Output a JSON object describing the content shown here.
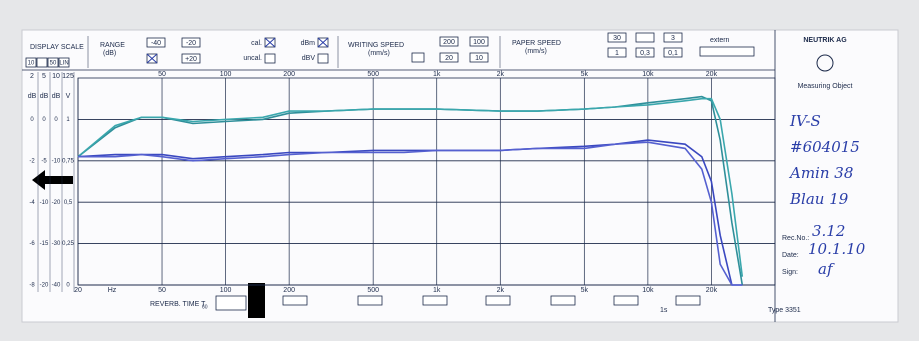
{
  "header": {
    "display_scale": "DISPLAY SCALE",
    "display_options": [
      "10",
      "50",
      "LIN"
    ],
    "range": "RANGE",
    "range_unit": "(dB)",
    "range_buttons": [
      "-40",
      "-20",
      "+20"
    ],
    "cal": "cal.",
    "dbm": "dBm",
    "uncal": "uncal.",
    "dbv": "dBV",
    "writing_speed": "WRITING SPEED",
    "writing_unit": "(mm/s)",
    "writing_buttons": [
      "200",
      "100",
      "20",
      "10"
    ],
    "paper_speed": "PAPER SPEED",
    "paper_unit": "(mm/s)",
    "paper_buttons": [
      "30",
      "3",
      "1",
      "0,3",
      "0,1"
    ],
    "extern": "extern"
  },
  "scale_columns": [
    {
      "range": "2",
      "unit": "dB",
      "labels": [
        "0",
        "-2",
        "-4",
        "-6",
        "-8"
      ]
    },
    {
      "range": "5",
      "unit": "dB",
      "labels": [
        "0",
        "-5",
        "-10",
        "-15",
        "-20"
      ]
    },
    {
      "range": "10",
      "unit": "dB"
    },
    {
      "range": "125",
      "unit": "V",
      "labels": [
        "1",
        "0,75",
        "0,5",
        "0,25",
        "0"
      ]
    }
  ],
  "chart_data": {
    "type": "line",
    "x_unit": "Hz",
    "log_x": true,
    "grid": true,
    "x": [
      20,
      30,
      40,
      50,
      70,
      100,
      150,
      200,
      300,
      500,
      700,
      1000,
      2000,
      3000,
      5000,
      7000,
      10000,
      15000,
      18000,
      20000,
      22000,
      25000,
      28000
    ],
    "series": [
      {
        "color": "#2f8f9a",
        "values": [
          -9,
          -2,
          0.5,
          0.5,
          -1,
          -0.5,
          0,
          1.5,
          2,
          2.5,
          2.5,
          2.5,
          2,
          2,
          2.5,
          3,
          4,
          5,
          5.5,
          4.5,
          -5,
          -25,
          -40
        ]
      },
      {
        "color": "#3aa7ad",
        "values": [
          -9,
          -1.5,
          0.5,
          0.5,
          -0.5,
          0,
          0.5,
          2,
          2,
          2.5,
          2.5,
          2.5,
          2,
          2,
          2.5,
          3,
          3.5,
          4.5,
          5,
          5,
          0,
          -18,
          -38
        ]
      },
      {
        "color": "#3a48c0",
        "values": [
          -9,
          -8.5,
          -8.5,
          -8.5,
          -9.5,
          -9,
          -8.5,
          -8,
          -8,
          -7.5,
          -7.5,
          -7.5,
          -7.5,
          -7,
          -6.5,
          -6,
          -5,
          -6,
          -9,
          -15,
          -28,
          -40,
          -40
        ]
      },
      {
        "color": "#5560d0",
        "values": [
          -9,
          -9,
          -8.5,
          -9,
          -10,
          -9.5,
          -9,
          -8.5,
          -8,
          -8,
          -8,
          -7.5,
          -7.5,
          -7,
          -7,
          -6,
          -5.5,
          -7,
          -12,
          -20,
          -35,
          -40,
          -40
        ]
      }
    ],
    "xlim": [
      20,
      40000
    ],
    "xticks": [
      20,
      50,
      100,
      200,
      500,
      {
        "value": 1000,
        "label": "1k"
      },
      {
        "value": 2000,
        "label": "2k"
      },
      {
        "value": 5000,
        "label": "5k"
      },
      {
        "value": 10000,
        "label": "10k"
      },
      {
        "value": 20000,
        "label": "20k"
      }
    ],
    "ylim": [
      -40,
      10
    ],
    "yticks": [
      0,
      -10,
      -20,
      -30,
      -40
    ]
  },
  "panel": {
    "company": "NEUTRIK AG",
    "measuring_object": "Measuring Object",
    "handwritten": [
      "IV-S",
      "#604015",
      "Amin 38",
      "Blau 19"
    ],
    "rec_no_label": "Rec.No.:",
    "rec_no": "3.12",
    "date_label": "Date:",
    "date": "10.1.10",
    "sign_label": "Sign:",
    "sign": "af"
  },
  "footer": {
    "reverb": "REVERB. TIME T",
    "reverb_sub": "60",
    "time_mark": "1s",
    "type": "Type 3351"
  }
}
